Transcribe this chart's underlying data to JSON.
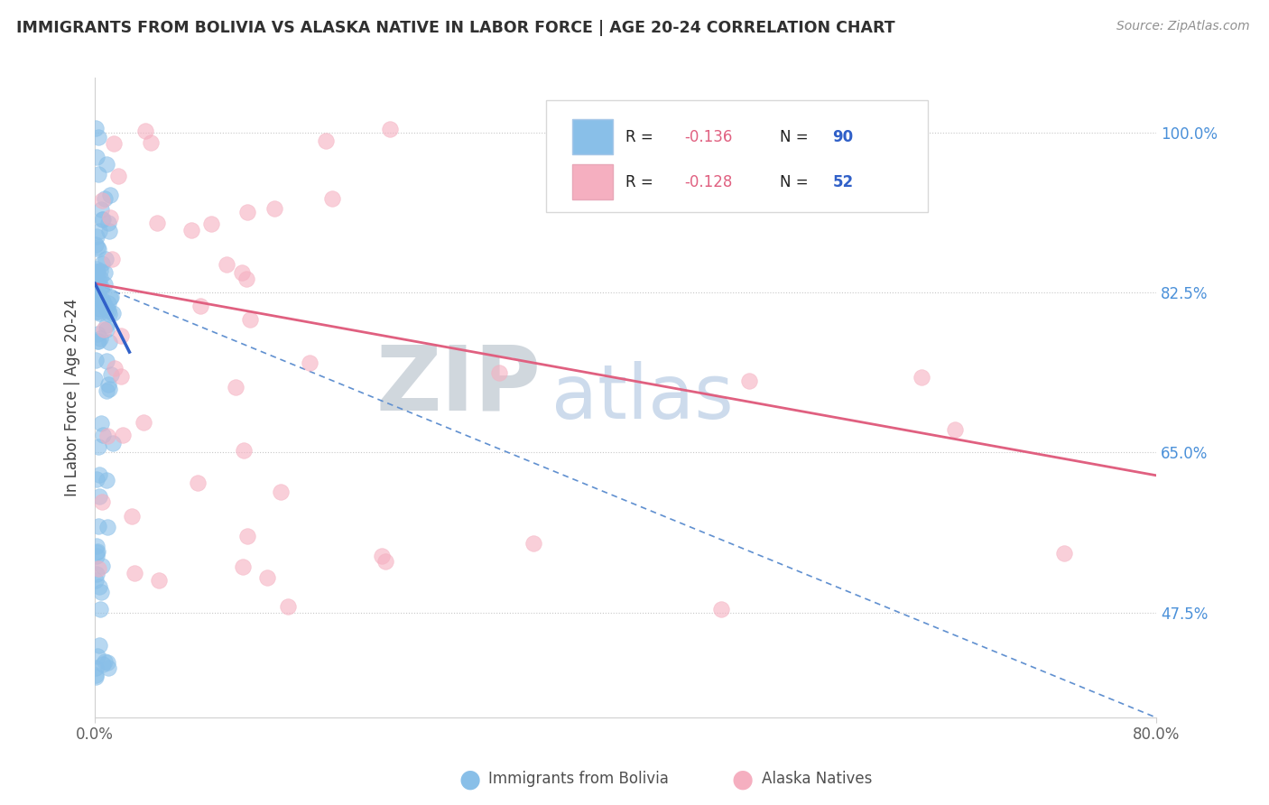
{
  "title": "IMMIGRANTS FROM BOLIVIA VS ALASKA NATIVE IN LABOR FORCE | AGE 20-24 CORRELATION CHART",
  "source": "Source: ZipAtlas.com",
  "ylabel": "In Labor Force | Age 20-24",
  "xlim": [
    0.0,
    0.8
  ],
  "ylim": [
    0.36,
    1.06
  ],
  "watermark_zip": "ZIP",
  "watermark_atlas": "atlas",
  "legend1_label": "Immigrants from Bolivia",
  "legend2_label": "Alaska Natives",
  "R1": -0.136,
  "N1": 90,
  "R2": -0.128,
  "N2": 52,
  "blue_color": "#89bfe8",
  "pink_color": "#f5afc0",
  "blue_line_color": "#3060c8",
  "pink_line_color": "#e06080",
  "dash_line_color": "#6090d0",
  "title_color": "#303030",
  "source_color": "#909090",
  "axis_label_color": "#404040",
  "right_tick_color": "#4a90d9",
  "legend_r_color": "#e06080",
  "legend_n_color": "#3060c8",
  "y_tick_vals": [
    0.475,
    0.65,
    0.825,
    1.0
  ],
  "y_tick_labels": [
    "47.5%",
    "65.0%",
    "82.5%",
    "100.0%"
  ],
  "blue_line_x": [
    0.0,
    0.026
  ],
  "blue_line_y": [
    0.835,
    0.76
  ],
  "pink_line_x": [
    0.0,
    0.8
  ],
  "pink_line_y": [
    0.835,
    0.625
  ],
  "dash_line_x": [
    0.0,
    0.8
  ],
  "dash_line_y": [
    0.835,
    0.36
  ]
}
